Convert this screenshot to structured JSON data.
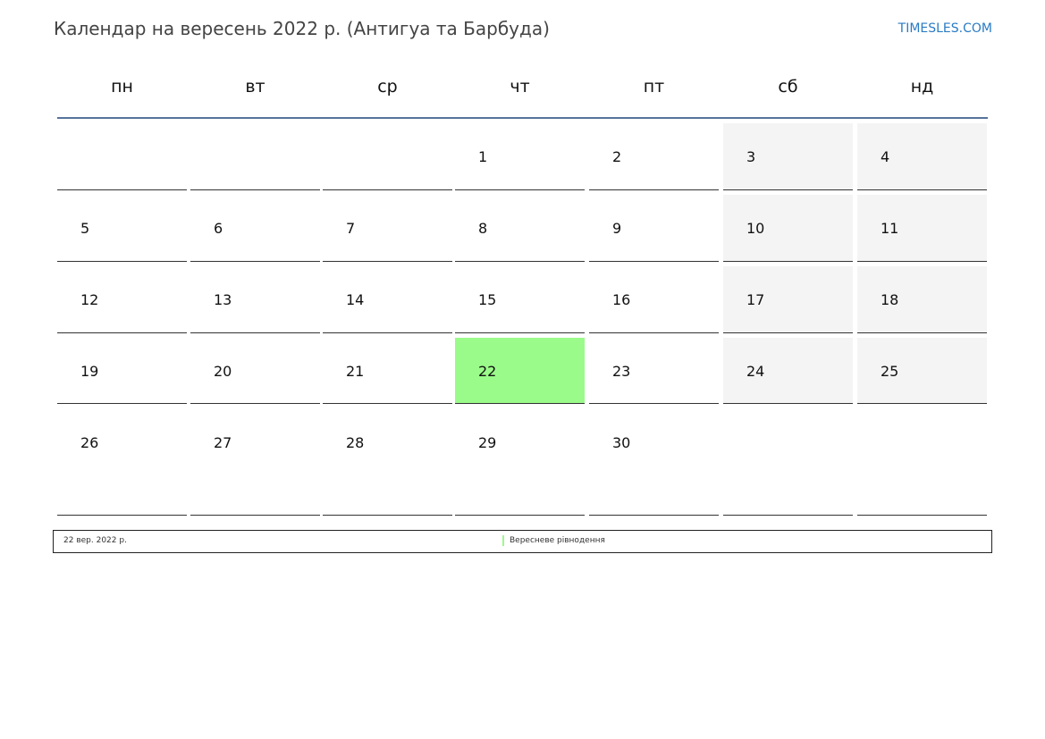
{
  "header": {
    "title": "Календар на вересень 2022 р. (Антигуа та Барбуда)",
    "brand": "TIMESLES.COM"
  },
  "weekdays": [
    "пн",
    "вт",
    "ср",
    "чт",
    "пт",
    "сб",
    "нд"
  ],
  "weeks": [
    [
      "",
      "",
      "",
      "1",
      "2",
      "3",
      "4"
    ],
    [
      "5",
      "6",
      "7",
      "8",
      "9",
      "10",
      "11"
    ],
    [
      "12",
      "13",
      "14",
      "15",
      "16",
      "17",
      "18"
    ],
    [
      "19",
      "20",
      "21",
      "22",
      "23",
      "24",
      "25"
    ],
    [
      "26",
      "27",
      "28",
      "29",
      "30",
      "",
      ""
    ]
  ],
  "highlighted_day": "22",
  "colors": {
    "holiday": "#9bfb8a",
    "weekend": "#f4f4f4",
    "header_line": "#56739b",
    "brand": "#2a7bc4"
  },
  "legend": {
    "date": "22 вер. 2022 р.",
    "name": "Вересневе рівнодення"
  }
}
